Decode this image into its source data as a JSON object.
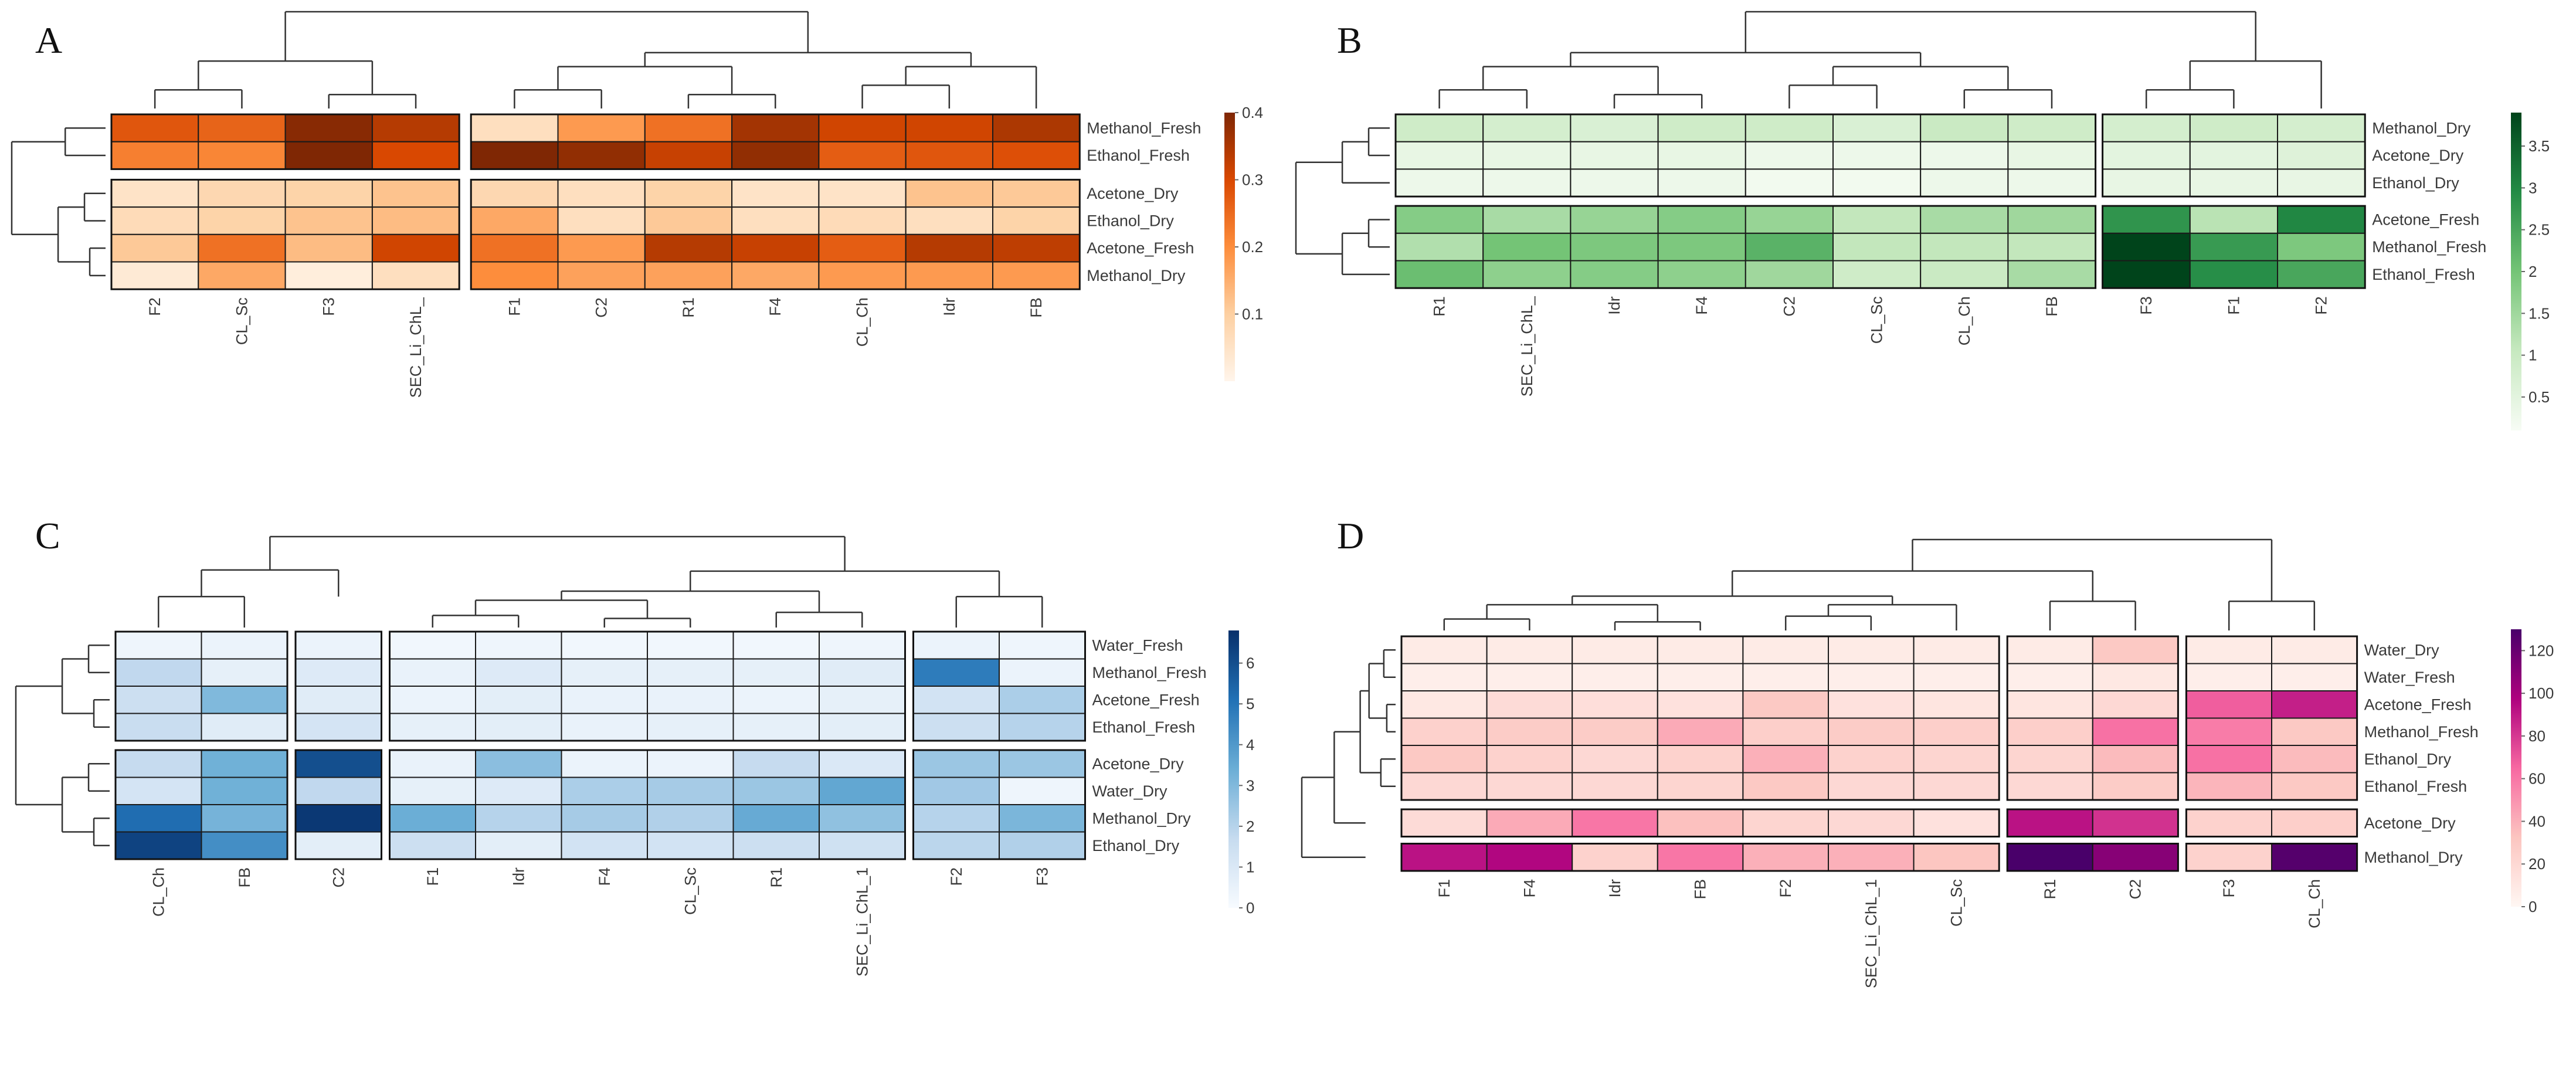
{
  "figure": {
    "title": ""
  },
  "colors": {
    "orange": [
      "#fff5eb",
      "#fdd0a2",
      "#fd8d3c",
      "#d94801",
      "#7f2704"
    ],
    "green": [
      "#f7fcf5",
      "#c7e9c0",
      "#74c476",
      "#238b45",
      "#00441b"
    ],
    "blue": [
      "#f7fbff",
      "#c6dbef",
      "#6baed6",
      "#2171b5",
      "#08306b"
    ],
    "pink": [
      "#fff7f3",
      "#fcc5c0",
      "#f768a1",
      "#ae017e",
      "#49006a"
    ]
  },
  "chart_data": [
    {
      "panel": "A",
      "type": "heatmap",
      "colorscale": "orange",
      "columns": [
        "F2",
        "CL_Sc",
        "F3",
        "SEC_Li_ChL_",
        "F1",
        "C2",
        "R1",
        "F4",
        "CL_Ch",
        "Idr",
        "FB"
      ],
      "col_groups": [
        4,
        7
      ],
      "rows": [
        "Methanol_Fresh",
        "Ethanol_Fresh",
        "Acetone_Dry",
        "Ethanol_Dry",
        "Acetone_Fresh",
        "Methanol_Dry"
      ],
      "row_groups": [
        2,
        4
      ],
      "values": [
        [
          0.28,
          0.26,
          0.39,
          0.34,
          0.06,
          0.18,
          0.24,
          0.36,
          0.31,
          0.31,
          0.35
        ],
        [
          0.22,
          0.21,
          0.4,
          0.3,
          0.4,
          0.38,
          0.32,
          0.38,
          0.27,
          0.28,
          0.29
        ],
        [
          0.05,
          0.08,
          0.09,
          0.12,
          0.08,
          0.06,
          0.09,
          0.05,
          0.05,
          0.12,
          0.11
        ],
        [
          0.07,
          0.09,
          0.12,
          0.13,
          0.16,
          0.06,
          0.11,
          0.06,
          0.07,
          0.06,
          0.09
        ],
        [
          0.11,
          0.24,
          0.13,
          0.31,
          0.24,
          0.18,
          0.34,
          0.32,
          0.27,
          0.34,
          0.33
        ],
        [
          0.03,
          0.16,
          0.02,
          0.06,
          0.2,
          0.17,
          0.17,
          0.16,
          0.18,
          0.18,
          0.18
        ]
      ],
      "colorbar": {
        "min": 0.0,
        "max": 0.4,
        "ticks": [
          0.1,
          0.2,
          0.3,
          0.4
        ],
        "tick_labels": [
          "0.1",
          "0.2",
          "0.3",
          "0.4"
        ]
      }
    },
    {
      "panel": "B",
      "type": "heatmap",
      "colorscale": "green",
      "columns": [
        "R1",
        "SEC_Li_ChL_",
        "Idr",
        "F4",
        "C2",
        "CL_Sc",
        "CL_Ch",
        "FB",
        "F3",
        "F1",
        "F2"
      ],
      "col_groups": [
        8,
        3
      ],
      "rows": [
        "Methanol_Dry",
        "Acetone_Dry",
        "Ethanol_Dry",
        "Acetone_Fresh",
        "Methanol_Fresh",
        "Ethanol_Fresh"
      ],
      "row_groups": [
        3,
        3
      ],
      "values": [
        [
          0.9,
          0.8,
          0.7,
          0.9,
          0.9,
          0.7,
          1.0,
          0.9,
          0.8,
          0.9,
          0.8
        ],
        [
          0.4,
          0.4,
          0.4,
          0.4,
          0.3,
          0.3,
          0.3,
          0.4,
          0.5,
          0.5,
          0.6
        ],
        [
          0.3,
          0.3,
          0.3,
          0.3,
          0.2,
          0.2,
          0.3,
          0.3,
          0.4,
          0.4,
          0.4
        ],
        [
          1.8,
          1.4,
          1.6,
          1.8,
          1.6,
          1.1,
          1.4,
          1.5,
          2.8,
          1.2,
          3.0
        ],
        [
          1.3,
          2.0,
          1.9,
          1.9,
          2.3,
          1.1,
          1.1,
          1.1,
          3.9,
          2.7,
          1.9
        ],
        [
          2.1,
          1.7,
          1.8,
          1.7,
          1.5,
          0.9,
          1.0,
          1.4,
          3.95,
          2.9,
          2.5
        ]
      ],
      "colorbar": {
        "min": 0.1,
        "max": 3.9,
        "ticks": [
          0.5,
          1,
          1.5,
          2,
          2.5,
          3,
          3.5
        ],
        "tick_labels": [
          "0.5",
          "1",
          "1.5",
          "2",
          "2.5",
          "3",
          "3.5"
        ]
      }
    },
    {
      "panel": "C",
      "type": "heatmap",
      "colorscale": "blue",
      "columns": [
        "CL_Ch",
        "FB",
        "C2",
        "F1",
        "Idr",
        "F4",
        "CL_Sc",
        "R1",
        "SEC_Li_ChL_1",
        "F2",
        "F3"
      ],
      "col_groups": [
        2,
        1,
        6,
        2
      ],
      "rows": [
        "Water_Fresh",
        "Methanol_Fresh",
        "Acetone_Fresh",
        "Ethanol_Fresh",
        "Acetone_Dry",
        "Water_Dry",
        "Methanol_Dry",
        "Ethanol_Dry"
      ],
      "row_groups": [
        4,
        4
      ],
      "values": [
        [
          0.3,
          0.4,
          0.4,
          0.2,
          0.3,
          0.2,
          0.2,
          0.2,
          0.3,
          0.4,
          0.3
        ],
        [
          1.8,
          0.6,
          0.9,
          0.5,
          0.9,
          0.6,
          0.6,
          0.6,
          0.8,
          4.8,
          0.4
        ],
        [
          1.5,
          3.0,
          0.8,
          0.4,
          0.7,
          0.5,
          0.5,
          0.4,
          0.6,
          1.3,
          2.2
        ],
        [
          1.6,
          0.8,
          1.2,
          0.6,
          0.7,
          0.5,
          0.6,
          0.6,
          0.7,
          1.5,
          2.0
        ],
        [
          1.7,
          3.3,
          6.0,
          0.5,
          2.8,
          0.4,
          0.4,
          1.7,
          1.0,
          2.5,
          2.5
        ],
        [
          1.2,
          3.3,
          1.8,
          0.6,
          0.9,
          2.2,
          2.3,
          2.5,
          3.6,
          2.4,
          0.3
        ],
        [
          5.2,
          3.2,
          6.6,
          3.4,
          2.0,
          2.3,
          2.1,
          3.5,
          2.7,
          2.0,
          3.1
        ],
        [
          6.3,
          4.3,
          0.7,
          1.5,
          0.7,
          1.3,
          1.3,
          1.5,
          1.4,
          1.9,
          2.1
        ]
      ],
      "colorbar": {
        "min": 0,
        "max": 6.8,
        "ticks": [
          0,
          1,
          2,
          3,
          4,
          5,
          6
        ],
        "tick_labels": [
          "0",
          "1",
          "2",
          "3",
          "4",
          "5",
          "6"
        ]
      }
    },
    {
      "panel": "D",
      "type": "heatmap",
      "colorscale": "pink",
      "columns": [
        "F1",
        "F4",
        "Idr",
        "FB",
        "F2",
        "SEC_Li_ChL_1",
        "CL_Sc",
        "R1",
        "C2",
        "F3",
        "CL_Ch"
      ],
      "col_groups": [
        7,
        2,
        2
      ],
      "rows": [
        "Water_Dry",
        "Water_Fresh",
        "Acetone_Fresh",
        "Methanol_Fresh",
        "Ethanol_Dry",
        "Ethanol_Fresh",
        "Acetone_Dry",
        "Methanol_Dry"
      ],
      "row_groups": [
        6,
        1,
        1
      ],
      "values": [
        [
          8,
          8,
          8,
          8,
          8,
          8,
          8,
          8,
          30,
          8,
          8
        ],
        [
          6,
          6,
          6,
          6,
          6,
          6,
          6,
          6,
          10,
          6,
          6
        ],
        [
          10,
          18,
          16,
          14,
          30,
          14,
          12,
          12,
          20,
          68,
          88
        ],
        [
          25,
          28,
          28,
          42,
          26,
          28,
          26,
          26,
          62,
          58,
          30
        ],
        [
          30,
          24,
          20,
          24,
          40,
          24,
          22,
          22,
          36,
          62,
          36
        ],
        [
          20,
          20,
          20,
          22,
          30,
          20,
          20,
          20,
          28,
          38,
          30
        ],
        [
          18,
          42,
          60,
          34,
          22,
          20,
          14,
          92,
          82,
          24,
          26
        ],
        [
          92,
          96,
          24,
          60,
          40,
          40,
          32,
          130,
          110,
          24,
          126
        ]
      ],
      "colorbar": {
        "min": 0,
        "max": 130,
        "ticks": [
          0,
          20,
          40,
          60,
          80,
          100,
          120
        ],
        "tick_labels": [
          "0",
          "20",
          "40",
          "60",
          "80",
          "100",
          "120"
        ]
      }
    }
  ]
}
